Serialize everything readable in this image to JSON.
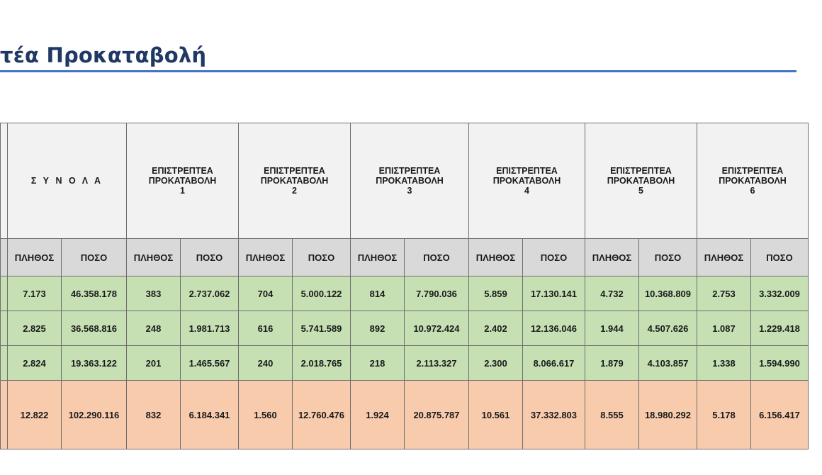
{
  "title": "τέα Προκαταβολή",
  "table": {
    "totals_header": "Σ Υ Ν Ο Λ Α",
    "groups": [
      {
        "line1": "ΕΠΙΣΤΡΕΠΤΕΑ",
        "line2": "ΠΡΟΚΑΤΑΒΟΛΗ",
        "number": "1"
      },
      {
        "line1": "ΕΠΙΣΤΡΕΠΤΕΑ",
        "line2": "ΠΡΟΚΑΤΑΒΟΛΗ",
        "number": "2"
      },
      {
        "line1": "ΕΠΙΣΤΡΕΠΤΕΑ",
        "line2": "ΠΡΟΚΑΤΑΒΟΛΗ",
        "number": "3"
      },
      {
        "line1": "ΕΠΙΣΤΡΕΠΤΕΑ",
        "line2": "ΠΡΟΚΑΤΑΒΟΛΗ",
        "number": "4"
      },
      {
        "line1": "ΕΠΙΣΤΡΕΠΤΕΑ",
        "line2": "ΠΡΟΚΑΤΑΒΟΛΗ",
        "number": "5"
      },
      {
        "line1": "ΕΠΙΣΤΡΕΠΤΕΑ",
        "line2": "ΠΡΟΚΑΤΑΒΟΛΗ",
        "number": "6"
      }
    ],
    "sub_headers": [
      "ΠΛΗΘΟΣ",
      "ΠΟΣΟ",
      "ΠΛΗΘΟΣ",
      "ΠΟΣΟ",
      "ΠΛΗΘΟΣ",
      "ΠΟΣΟ",
      "ΠΛΗΘΟΣ",
      "ΠΟΣΟ",
      "ΠΛΗΘΟΣ",
      "ΠΟΣΟ",
      "ΠΛΗΘΟΣ",
      "ΠΟΣΟ",
      "ΠΛΗΘΟΣ",
      "ΠΟΣΟ"
    ],
    "rows": [
      [
        "7.173",
        "46.358.178",
        "383",
        "2.737.062",
        "704",
        "5.000.122",
        "814",
        "7.790.036",
        "5.859",
        "17.130.141",
        "4.732",
        "10.368.809",
        "2.753",
        "3.332.009"
      ],
      [
        "2.825",
        "36.568.816",
        "248",
        "1.981.713",
        "616",
        "5.741.589",
        "892",
        "10.972.424",
        "2.402",
        "12.136.046",
        "1.944",
        "4.507.626",
        "1.087",
        "1.229.418"
      ],
      [
        "2.824",
        "19.363.122",
        "201",
        "1.465.567",
        "240",
        "2.018.765",
        "218",
        "2.113.327",
        "2.300",
        "8.066.617",
        "1.879",
        "4.103.857",
        "1.338",
        "1.594.990"
      ]
    ],
    "total_row": [
      "12.822",
      "102.290.116",
      "832",
      "6.184.341",
      "1.560",
      "12.760.476",
      "1.924",
      "20.875.787",
      "10.561",
      "37.332.803",
      "8.555",
      "18.980.292",
      "5.178",
      "6.156.417"
    ]
  },
  "colors": {
    "title": "#1f3864",
    "rule": "#4472c4",
    "header_bg": "#f2f2f2",
    "subheader_bg": "#d9d9d9",
    "row_bg": "#c6e0b4",
    "total_bg": "#f8cbad"
  }
}
